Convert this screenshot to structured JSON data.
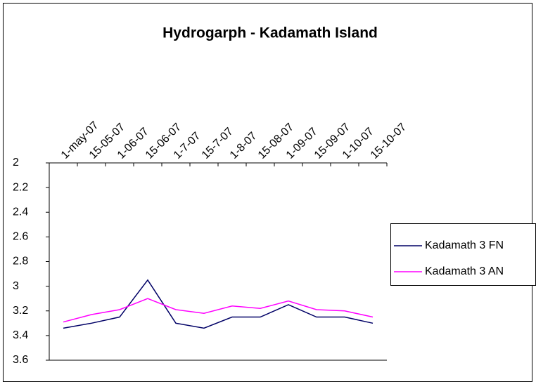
{
  "chart_data": {
    "type": "line",
    "title": "Hydrogarph - Kadamath Island",
    "categories": [
      "1-may-07",
      "15-05-07",
      "1-06-07",
      "15-06-07",
      "1-7-07",
      "15-7-07",
      "1-8-07",
      "15-08-07",
      "1-09-07",
      "15-09-07",
      "1-10-07",
      "15-10-07"
    ],
    "series": [
      {
        "name": "Kadamath 3 FN",
        "color": "#000066",
        "values": [
          3.34,
          3.3,
          3.25,
          2.95,
          3.3,
          3.34,
          3.25,
          3.25,
          3.15,
          3.25,
          3.25,
          3.3
        ]
      },
      {
        "name": "Kadamath 3 AN",
        "color": "#ff00ff",
        "values": [
          3.29,
          3.23,
          3.19,
          3.1,
          3.19,
          3.22,
          3.16,
          3.18,
          3.12,
          3.19,
          3.2,
          3.25
        ]
      }
    ],
    "ylim": [
      3.6,
      2
    ],
    "yticks": [
      2,
      2.2,
      2.4,
      2.6,
      2.8,
      3,
      3.2,
      3.4,
      3.6
    ],
    "grid": false,
    "legend": "right"
  }
}
